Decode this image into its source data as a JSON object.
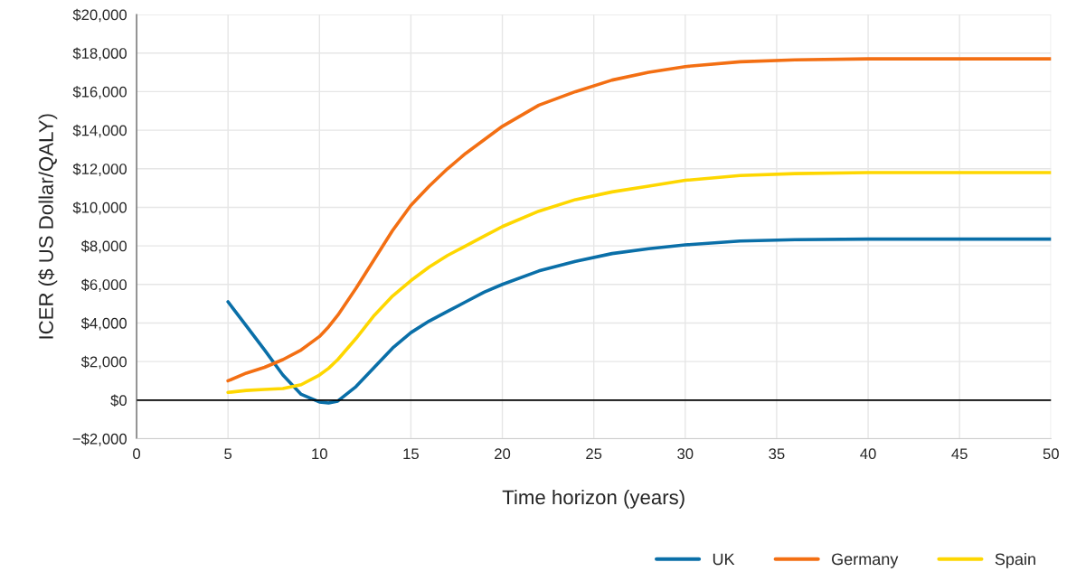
{
  "chart_data": {
    "type": "line",
    "xlabel": "Time horizon (years)",
    "ylabel": "ICER ($ US Dollar/QALY)",
    "x": [
      5,
      6,
      7,
      8,
      9,
      10,
      10.5,
      11,
      12,
      13,
      14,
      15,
      16,
      17,
      18,
      19,
      20,
      22,
      24,
      26,
      28,
      30,
      33,
      36,
      40,
      45,
      50
    ],
    "series": [
      {
        "name": "UK",
        "color": "#0a6fa8",
        "values": [
          5100,
          3850,
          2600,
          1300,
          300,
          -100,
          -150,
          -50,
          700,
          1700,
          2700,
          3500,
          4100,
          4600,
          5100,
          5600,
          6000,
          6700,
          7200,
          7600,
          7850,
          8050,
          8250,
          8320,
          8350,
          8350,
          8350
        ]
      },
      {
        "name": "Germany",
        "color": "#f36f13",
        "values": [
          1000,
          1400,
          1700,
          2100,
          2600,
          3300,
          3800,
          4400,
          5800,
          7300,
          8800,
          10100,
          11100,
          12000,
          12800,
          13500,
          14200,
          15300,
          16000,
          16600,
          17000,
          17300,
          17550,
          17650,
          17700,
          17700,
          17700
        ]
      },
      {
        "name": "Spain",
        "color": "#fed700",
        "values": [
          400,
          500,
          550,
          600,
          800,
          1300,
          1650,
          2100,
          3200,
          4400,
          5400,
          6200,
          6900,
          7500,
          8000,
          8500,
          9000,
          9800,
          10400,
          10800,
          11100,
          11400,
          11650,
          11750,
          11800,
          11800,
          11800
        ]
      }
    ],
    "xlim": [
      0,
      50
    ],
    "xticks": [
      0,
      5,
      10,
      15,
      20,
      25,
      30,
      35,
      40,
      45,
      50
    ],
    "ylim": [
      -2000,
      20000
    ],
    "yticks": [
      {
        "value": -2000,
        "label": "−$2,000"
      },
      {
        "value": 0,
        "label": "$0"
      },
      {
        "value": 2000,
        "label": "$2,000"
      },
      {
        "value": 4000,
        "label": "$4,000"
      },
      {
        "value": 6000,
        "label": "$6,000"
      },
      {
        "value": 8000,
        "label": "$8,000"
      },
      {
        "value": 10000,
        "label": "$10,000"
      },
      {
        "value": 12000,
        "label": "$12,000"
      },
      {
        "value": 14000,
        "label": "$14,000"
      },
      {
        "value": 16000,
        "label": "$16,000"
      },
      {
        "value": 18000,
        "label": "$18,000"
      },
      {
        "value": 20000,
        "label": "$20,000"
      }
    ],
    "ref_lines": [
      {
        "axis": "y",
        "value": 0,
        "color": "#000000"
      }
    ],
    "grid": true,
    "legend": "bottom right",
    "marker": "none",
    "line_style": "solid"
  }
}
